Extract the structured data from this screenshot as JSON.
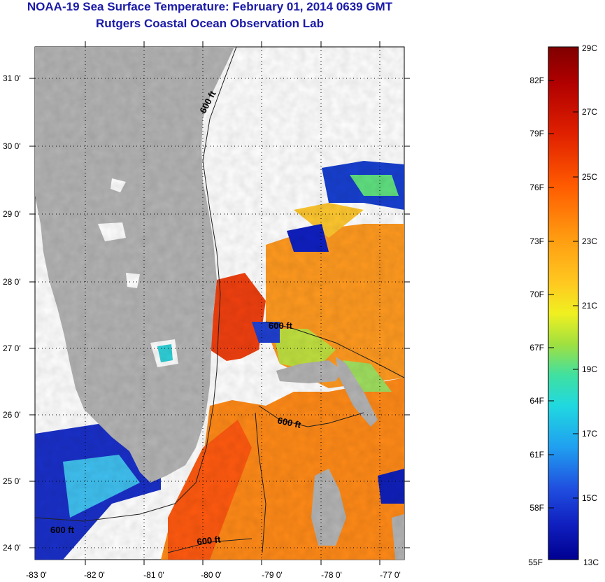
{
  "title": {
    "line1": "NOAA-19 Sea Surface Temperature:  February 01, 2014 0639 GMT",
    "line2": "Rutgers Coastal Ocean Observation Lab"
  },
  "axes": {
    "lat_labels": [
      "24 0'",
      "25 0'",
      "26 0'",
      "27 0'",
      "28 0'",
      "29 0'",
      "30 0'",
      "31 0'"
    ],
    "lon_labels": [
      "-83 0'",
      "-82 0'",
      "-81 0'",
      "-80 0'",
      "-79 0'",
      "-78 0'",
      "-77 0'"
    ]
  },
  "contour_labels": [
    "600 ft",
    "600 ft",
    "600 ft",
    "600 ft",
    "600 ft"
  ],
  "colorbar": {
    "celsius": [
      "29C",
      "27C",
      "25C",
      "23C",
      "21C",
      "19C",
      "17C",
      "15C",
      "13C"
    ],
    "fahrenheit": [
      "82F",
      "79F",
      "76F",
      "73F",
      "70F",
      "67F",
      "64F",
      "61F",
      "58F",
      "55F"
    ],
    "stops": [
      "#800000",
      "#b00000",
      "#e02000",
      "#ff5a00",
      "#ff9a10",
      "#ffc820",
      "#f0f020",
      "#a0e040",
      "#40e0a0",
      "#20d8e0",
      "#20a0f0",
      "#2050e0",
      "#1020c0",
      "#000090"
    ]
  },
  "colors": {
    "land": "#b4b4b4",
    "cloud": "#ffffff",
    "title": "#1a1aa6"
  }
}
